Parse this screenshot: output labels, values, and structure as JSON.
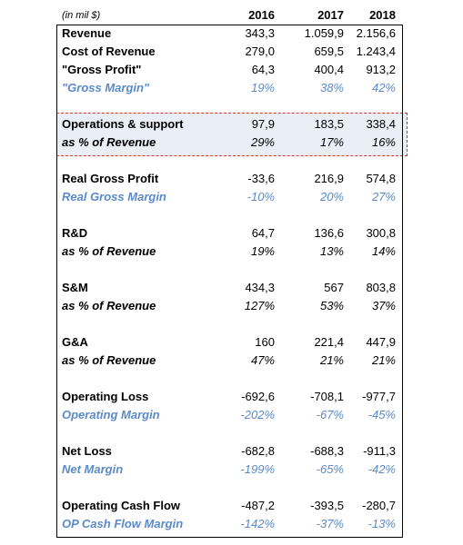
{
  "header": {
    "unit": "(in mil $)",
    "years": [
      "2016",
      "2017",
      "2018"
    ]
  },
  "rows": [
    {
      "label": "Revenue",
      "values": [
        "343,3",
        "1.059,9",
        "2.156,6"
      ],
      "style": "bold"
    },
    {
      "label": "Cost of Revenue",
      "values": [
        "279,0",
        "659,5",
        "1.243,4"
      ],
      "style": "bold"
    },
    {
      "label": "\"Gross Profit\"",
      "values": [
        "64,3",
        "400,4",
        "913,2"
      ],
      "style": "bold"
    },
    {
      "label": "\"Gross Margin\"",
      "values": [
        "19%",
        "38%",
        "42%"
      ],
      "style": "blue"
    },
    {
      "label": "Operations & support",
      "values": [
        "97,9",
        "183,5",
        "338,4"
      ],
      "style": "bold"
    },
    {
      "label": "as % of Revenue",
      "values": [
        "29%",
        "17%",
        "16%"
      ],
      "style": "italic"
    },
    {
      "label": "Real Gross Profit",
      "values": [
        "-33,6",
        "216,9",
        "574,8"
      ],
      "style": "bold"
    },
    {
      "label": "Real Gross Margin",
      "values": [
        "-10%",
        "20%",
        "27%"
      ],
      "style": "blue"
    },
    {
      "label": "R&D",
      "values": [
        "64,7",
        "136,6",
        "300,8"
      ],
      "style": "bold"
    },
    {
      "label": "as % of Revenue",
      "values": [
        "19%",
        "13%",
        "14%"
      ],
      "style": "italic"
    },
    {
      "label": "S&M",
      "values": [
        "434,3",
        "567",
        "803,8"
      ],
      "style": "bold"
    },
    {
      "label": "as % of Revenue",
      "values": [
        "127%",
        "53%",
        "37%"
      ],
      "style": "italic"
    },
    {
      "label": "G&A",
      "values": [
        "160",
        "221,4",
        "447,9"
      ],
      "style": "bold"
    },
    {
      "label": "as % of Revenue",
      "values": [
        "47%",
        "21%",
        "21%"
      ],
      "style": "italic"
    },
    {
      "label": "Operating Loss",
      "values": [
        "-692,6",
        "-708,1",
        "-977,7"
      ],
      "style": "bold"
    },
    {
      "label": "Operating Margin",
      "values": [
        "-202%",
        "-67%",
        "-45%"
      ],
      "style": "blue"
    },
    {
      "label": "Net Loss",
      "values": [
        "-682,8",
        "-688,3",
        "-911,3"
      ],
      "style": "bold"
    },
    {
      "label": "Net Margin",
      "values": [
        "-199%",
        "-65%",
        "-42%"
      ],
      "style": "blue"
    },
    {
      "label": "Operating Cash Flow",
      "values": [
        "-487,2",
        "-393,5",
        "-280,7"
      ],
      "style": "bold"
    },
    {
      "label": "OP Cash Flow Margin",
      "values": [
        "-142%",
        "-37%",
        "-13%"
      ],
      "style": "blue"
    }
  ],
  "colors": {
    "margin_text": "#5b8ac9",
    "highlight_fill": "#e9eef7",
    "highlight_border": "#d9302b"
  }
}
